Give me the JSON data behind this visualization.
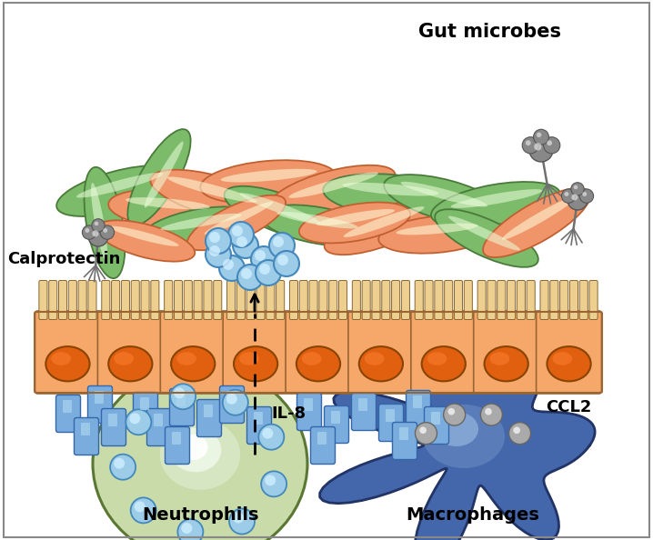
{
  "labels": {
    "gut_microbes": "Gut microbes",
    "calprotectin": "Calprotectin",
    "il8": "IL-8",
    "ccl2": "CCL2",
    "neutrophils": "Neutrophils",
    "macrophages": "Macrophages"
  },
  "colors": {
    "background": "#ffffff",
    "epithelial_body": "#F5A86A",
    "epithelial_nucleus": "#E06010",
    "microvilli_color": "#F0D8A0",
    "microbe_green": "#7BBB6A",
    "microbe_green_dark": "#5A9A4A",
    "microbe_orange": "#F0956A",
    "gray_microbe": "#909090",
    "gray_dark": "#606060",
    "calprotectin_fill": "#9CCCE8",
    "calprotectin_edge": "#4488BB",
    "calprotectin_highlight": "#D0EEFF",
    "il8_fill": "#6699CC",
    "il8_edge": "#3366AA",
    "neutrophil_outer": "#C8DBA8",
    "neutrophil_edge": "#5A7733",
    "neutrophil_nucleus_fill": "#D8EAC0",
    "neutrophil_nucleus_white": "#F5F5F5",
    "macrophage_fill": "#4466AA",
    "macrophage_dark": "#334488",
    "macrophage_highlight": "#7799CC",
    "border_color": "#888888"
  },
  "figure_size": [
    7.18,
    5.94
  ],
  "dpi": 100
}
